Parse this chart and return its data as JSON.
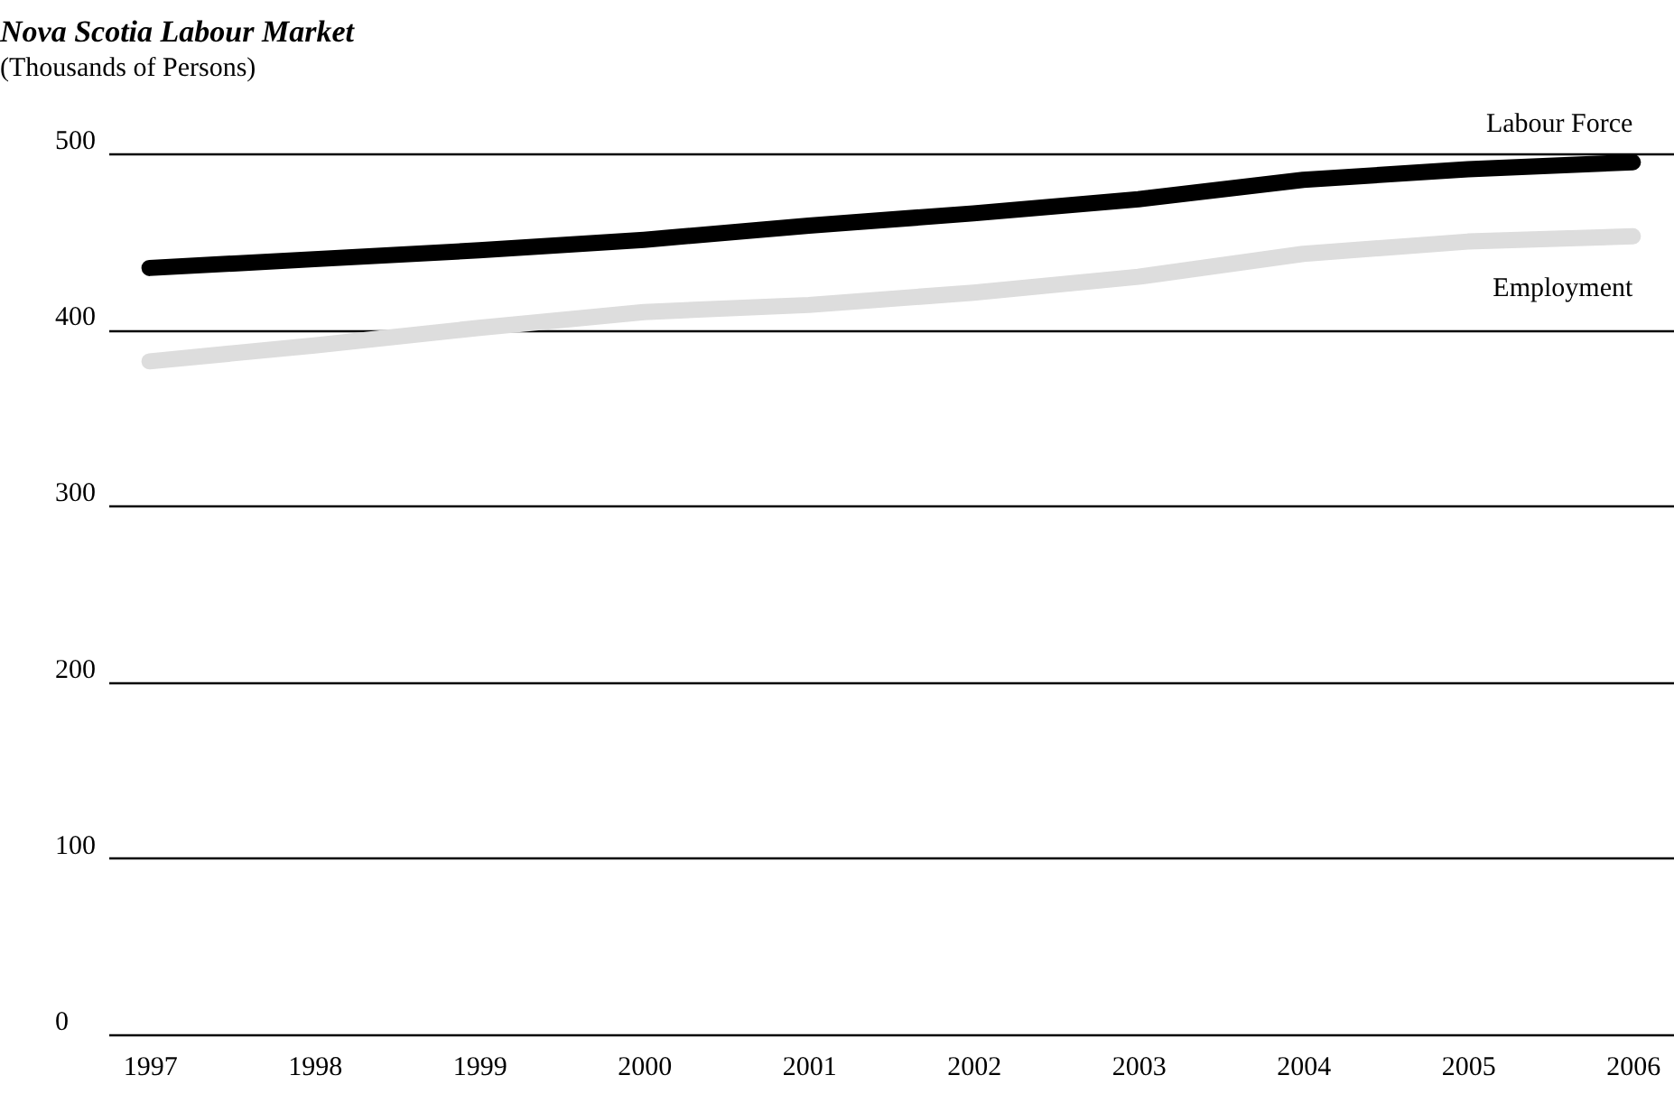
{
  "chart_data": {
    "type": "line",
    "title": "Nova Scotia Labour Market",
    "subtitle": "(Thousands of Persons)",
    "categories": [
      "1997",
      "1998",
      "1999",
      "2000",
      "2001",
      "2002",
      "2003",
      "2004",
      "2005",
      "2006"
    ],
    "series": [
      {
        "name": "Labour Force",
        "color": "#000000",
        "values": [
          435,
          440,
          445,
          451,
          459,
          466,
          474,
          485,
          491,
          495
        ]
      },
      {
        "name": "Employment",
        "color": "#dddddd",
        "values": [
          382,
          391,
          401,
          410,
          414,
          421,
          430,
          443,
          450,
          453
        ]
      }
    ],
    "ylim": [
      0,
      500
    ],
    "yticks": [
      0,
      100,
      200,
      300,
      400,
      500
    ],
    "grid": "y",
    "legend": false,
    "line_style": "solid",
    "marker": "none"
  }
}
